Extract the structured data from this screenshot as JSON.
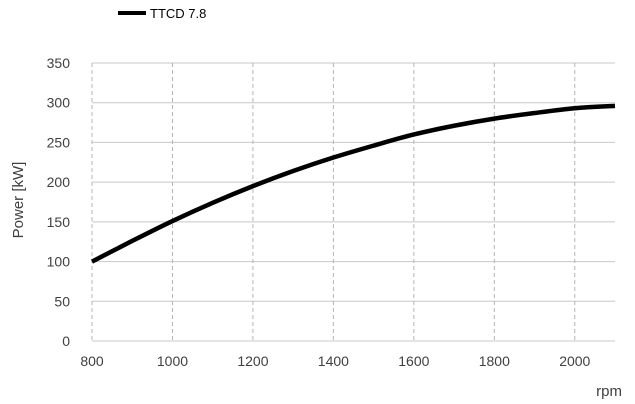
{
  "chart_data": {
    "type": "line",
    "title": "",
    "xlabel": "rpm",
    "ylabel": "Power [kW]",
    "xlim": [
      800,
      2100
    ],
    "ylim": [
      0,
      350
    ],
    "x_ticks": [
      "800",
      "1000",
      "1200",
      "1400",
      "1600",
      "1800",
      "2000"
    ],
    "y_ticks": [
      "0",
      "50",
      "100",
      "150",
      "200",
      "250",
      "300",
      "350"
    ],
    "grid": {
      "vertical": "dashed",
      "horizontal": "solid"
    },
    "legend": "top-left",
    "series": [
      {
        "name": "TTCD 7.8",
        "color": "#000000",
        "x": [
          800,
          900,
          1000,
          1100,
          1200,
          1300,
          1400,
          1500,
          1600,
          1700,
          1800,
          1900,
          2000,
          2100
        ],
        "y": [
          100,
          126,
          151,
          174,
          195,
          214,
          231,
          246,
          260,
          271,
          280,
          287,
          293,
          296
        ]
      }
    ]
  }
}
